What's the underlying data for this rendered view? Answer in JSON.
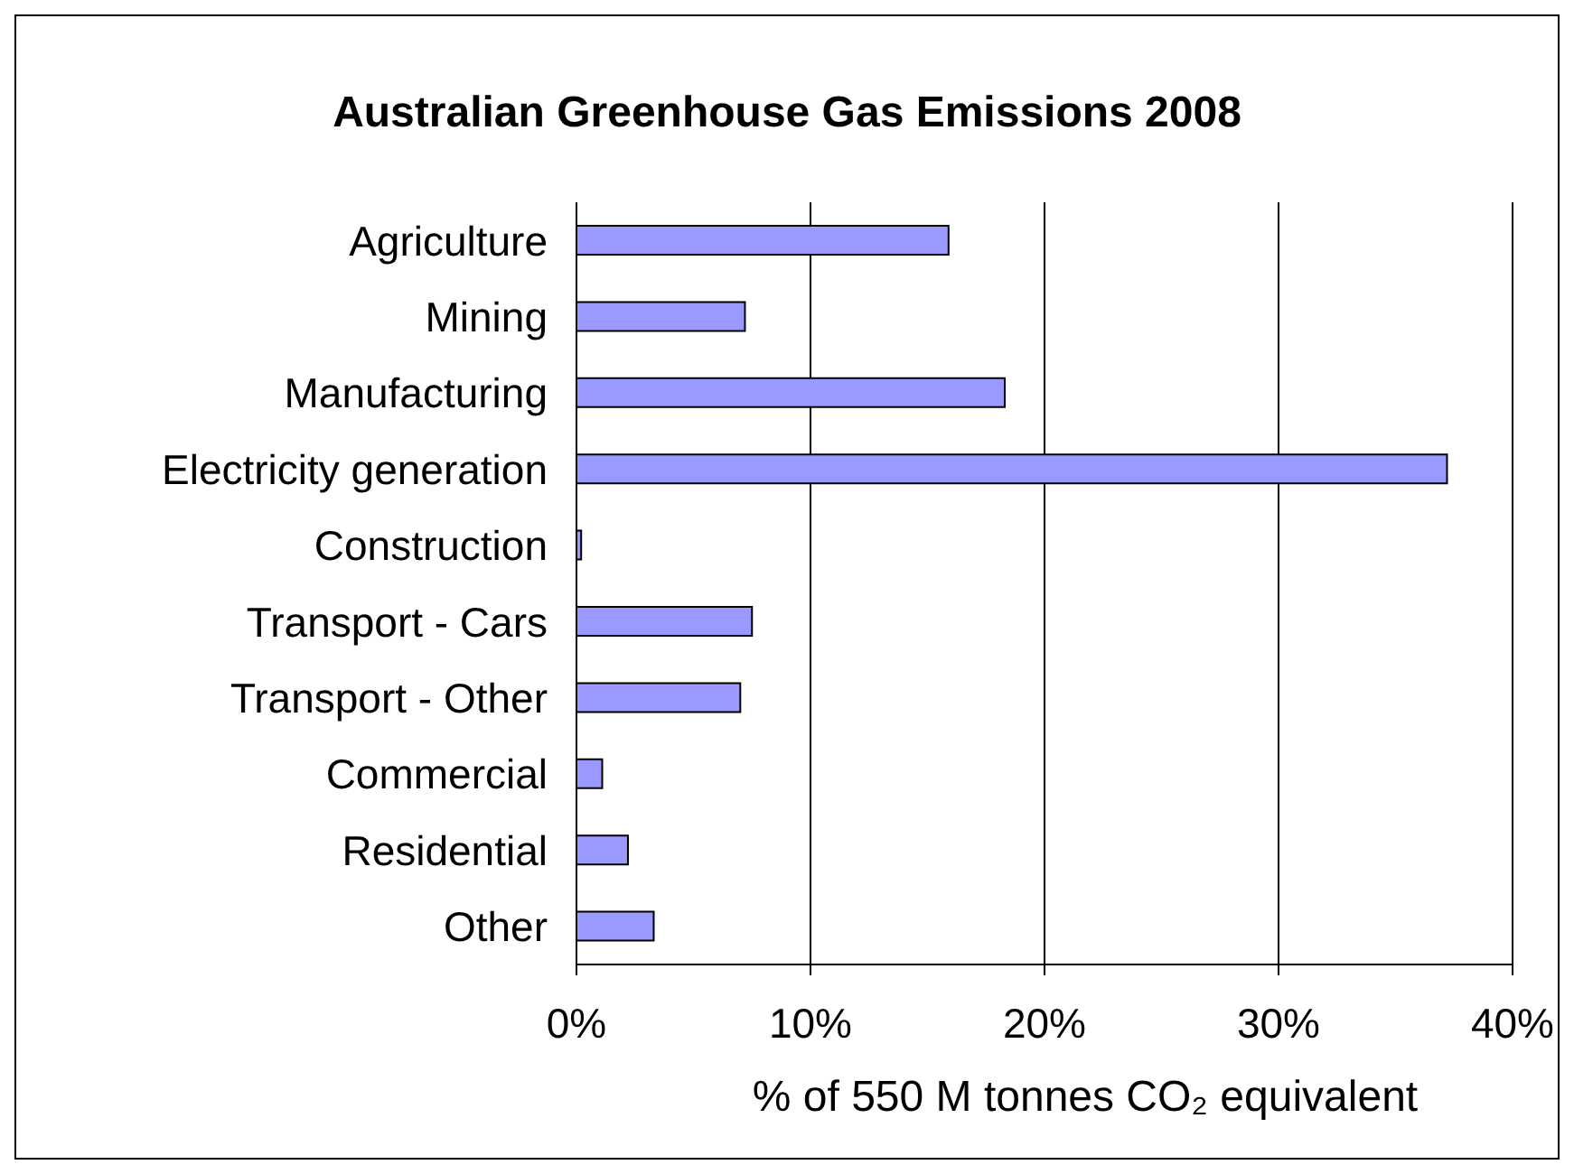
{
  "chart_data": {
    "type": "bar",
    "orientation": "horizontal",
    "title": "Australian Greenhouse Gas Emissions 2008",
    "xlabel": "% of 550 M tonnes CO₂ equivalent",
    "categories": [
      "Agriculture",
      "Mining",
      "Manufacturing",
      "Electricity generation",
      "Construction",
      "Transport - Cars",
      "Transport - Other",
      "Commercial",
      "Residential",
      "Other"
    ],
    "values": [
      15.9,
      7.2,
      18.3,
      37.2,
      0.2,
      7.5,
      7.0,
      1.1,
      2.2,
      3.3
    ],
    "color": "#9999ff",
    "xlim": [
      0,
      40
    ],
    "xticks": [
      {
        "value": 0,
        "label": "0%"
      },
      {
        "value": 10,
        "label": "10%"
      },
      {
        "value": 20,
        "label": "20%"
      },
      {
        "value": 30,
        "label": "30%"
      },
      {
        "value": 40,
        "label": "40%"
      }
    ],
    "grid": "x",
    "legend": false
  }
}
